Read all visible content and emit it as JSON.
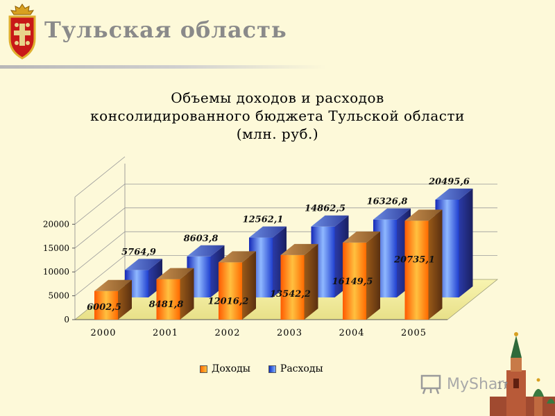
{
  "header": {
    "region_title": "Тульская область"
  },
  "chart_title_lines": [
    "Объемы доходов и расходов",
    "консолидированного бюджета Тульской области",
    "(млн. руб.)"
  ],
  "chart_data": {
    "type": "bar",
    "title": "Объемы доходов и расходов консолидированного бюджета Тульской области (млн. руб.)",
    "categories": [
      "2000",
      "2001",
      "2002",
      "2003",
      "2004",
      "2005"
    ],
    "series": [
      {
        "name": "Доходы",
        "values": [
          6002.5,
          8481.8,
          12016.2,
          13542.2,
          16149.5,
          20735.1
        ],
        "labels": [
          "6002,5",
          "8481,8",
          "12016,2",
          "13542,2",
          "16149,5",
          "20735,1"
        ]
      },
      {
        "name": "Расходы",
        "values": [
          5764.9,
          8603.8,
          12562.1,
          14862.5,
          16326.8,
          20495.6
        ],
        "labels": [
          "5764,9",
          "8603,8",
          "12562,1",
          "14862,5",
          "16326,8",
          "20495,6"
        ]
      }
    ],
    "y_ticks": [
      "0",
      "5000",
      "10000",
      "15000",
      "20000"
    ],
    "y_tick_values": [
      0,
      5000,
      10000,
      15000,
      20000
    ],
    "ylim": [
      0,
      26000
    ],
    "grid": true,
    "legend": "bottom",
    "colors": {
      "income_light": "#ffc040",
      "income_dark": "#ff5a00",
      "income_side": "#8a4a10",
      "expense_light": "#8fb8ff",
      "expense_dark": "#1428b8",
      "expense_side": "#28306a",
      "floor": "#f4f0a0"
    }
  },
  "legend": {
    "items": [
      "Доходы",
      "Расходы"
    ]
  },
  "watermark": "MyShared",
  "page_number": "17"
}
